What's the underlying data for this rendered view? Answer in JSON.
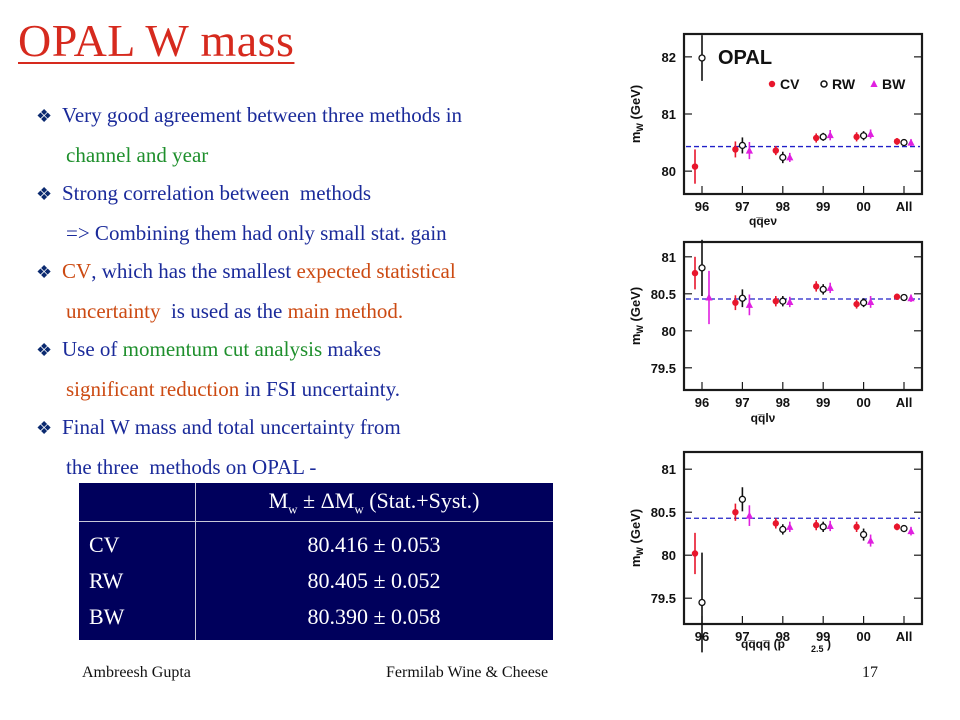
{
  "title": "OPAL  W mass",
  "bullets": [
    {
      "lines": [
        [
          {
            "t": "Very good agreement between three methods in",
            "c": "blue"
          }
        ],
        [
          {
            "t": "channel and year",
            "c": "green"
          }
        ]
      ]
    },
    {
      "lines": [
        [
          {
            "t": "Strong correlation between  methods",
            "c": "blue"
          }
        ],
        [
          {
            "t": "=> Combining them had only small stat. gain",
            "c": "blue"
          }
        ]
      ]
    },
    {
      "lines": [
        [
          {
            "t": "CV",
            "c": "orange"
          },
          {
            "t": ", which has the smallest ",
            "c": "blue"
          },
          {
            "t": "expected statistical",
            "c": "orange"
          }
        ],
        [
          {
            "t": "uncertainty ",
            "c": "orange"
          },
          {
            "t": " is used as the ",
            "c": "blue"
          },
          {
            "t": "main method.",
            "c": "orange"
          }
        ]
      ]
    },
    {
      "lines": [
        [
          {
            "t": "Use of ",
            "c": "blue"
          },
          {
            "t": "momentum cut analysis ",
            "c": "green"
          },
          {
            "t": "makes",
            "c": "blue"
          }
        ],
        [
          {
            "t": "significant reduction ",
            "c": "orange"
          },
          {
            "t": "in FSI uncertainty.",
            "c": "blue"
          }
        ]
      ]
    },
    {
      "lines": [
        [
          {
            "t": "Final W mass and total uncertainty from",
            "c": "blue"
          }
        ],
        [
          {
            "t": "the three  methods on OPAL -",
            "c": "blue"
          }
        ]
      ]
    }
  ],
  "results": {
    "header": "Mₗ ± ΔMₗ (Stat.+Syst.)",
    "header_parts": {
      "a": "M",
      "sub1": "w",
      "b": "  ±  ΔM",
      "sub2": "w",
      "c": " (Stat.+Syst.)"
    },
    "rows": [
      {
        "method": "CV",
        "value": "80.416  ± 0.053"
      },
      {
        "method": "RW",
        "value": "80.405  ± 0.052"
      },
      {
        "method": "BW",
        "value": "80.390  ± 0.058"
      }
    ]
  },
  "footer": {
    "author": "Ambreesh Gupta",
    "event": "Fermilab Wine & Cheese",
    "page": "17"
  },
  "colors": {
    "CV": "#e8162c",
    "RW": "#111111",
    "BW": "#e020e0",
    "avg_line": "#2020c8",
    "frame": "#1a1a1a"
  },
  "chart_data": [
    {
      "type": "scatter",
      "channel": "q̅qeν",
      "channel_label": "qq̅eν",
      "ylabel": "m_W (GeV)",
      "ylim": [
        79.6,
        82.4
      ],
      "yticks": [
        80,
        81,
        82
      ],
      "categories": [
        "96",
        "97",
        "98",
        "99",
        "00",
        "All"
      ],
      "average": 80.43,
      "legend": {
        "title": "OPAL",
        "entries": [
          "CV",
          "RW",
          "BW"
        ]
      },
      "series": [
        {
          "name": "CV",
          "values": [
            80.08,
            80.38,
            80.36,
            80.58,
            80.6,
            80.52
          ],
          "errors": [
            0.3,
            0.14,
            0.08,
            0.08,
            0.08,
            0.06
          ]
        },
        {
          "name": "RW",
          "values": [
            81.98,
            80.45,
            80.24,
            80.6,
            80.62,
            80.5
          ],
          "errors": [
            0.4,
            0.14,
            0.1,
            0.07,
            0.08,
            0.05
          ]
        },
        {
          "name": "BW",
          "values": null,
          "points": [
            null,
            80.36,
            80.24,
            80.63,
            80.65,
            80.5
          ],
          "errors": [
            null,
            0.15,
            0.08,
            0.09,
            0.08,
            0.06
          ]
        }
      ]
    },
    {
      "type": "scatter",
      "channel": "qq̅lν",
      "channel_label": "qq̅lν",
      "ylabel": "m_W (GeV)",
      "ylim": [
        79.2,
        81.2
      ],
      "yticks": [
        79.5,
        80,
        80.5,
        81
      ],
      "categories": [
        "96",
        "97",
        "98",
        "99",
        "00",
        "All"
      ],
      "average": 80.43,
      "series": [
        {
          "name": "CV",
          "values": [
            80.78,
            80.38,
            80.4,
            80.6,
            80.36,
            80.46
          ],
          "errors": [
            0.22,
            0.1,
            0.07,
            0.07,
            0.06,
            0.04
          ]
        },
        {
          "name": "RW",
          "values": [
            80.85,
            80.44,
            80.4,
            80.56,
            80.38,
            80.45
          ],
          "errors": [
            0.38,
            0.12,
            0.07,
            0.07,
            0.06,
            0.04
          ]
        },
        {
          "name": "BW",
          "points": [
            80.45,
            80.35,
            80.39,
            80.58,
            80.39,
            80.44
          ],
          "errors": [
            0.36,
            0.14,
            0.07,
            0.07,
            0.08,
            0.05
          ]
        }
      ]
    },
    {
      "type": "scatter",
      "channel": "qq̅qq̅ (p2.5)",
      "channel_label": "qq̅qq̅ (p",
      "channel_sub": "2.5",
      "ylabel": "m_W (GeV)",
      "ylim": [
        79.2,
        81.2
      ],
      "yticks": [
        79.5,
        80,
        80.5,
        81
      ],
      "categories": [
        "96",
        "97",
        "98",
        "99",
        "00",
        "All"
      ],
      "average": 80.43,
      "series": [
        {
          "name": "CV",
          "values": [
            80.02,
            80.5,
            80.37,
            80.35,
            80.33,
            80.33
          ],
          "errors": [
            0.24,
            0.1,
            0.06,
            0.06,
            0.06,
            0.04
          ]
        },
        {
          "name": "RW",
          "values": [
            79.45,
            80.65,
            80.3,
            80.33,
            80.24,
            80.31
          ],
          "errors": [
            0.58,
            0.14,
            0.06,
            0.06,
            0.07,
            0.04
          ]
        },
        {
          "name": "BW",
          "points": [
            null,
            80.46,
            80.33,
            80.34,
            80.17,
            80.28
          ],
          "errors": [
            null,
            0.12,
            0.06,
            0.06,
            0.07,
            0.05
          ]
        }
      ]
    }
  ]
}
